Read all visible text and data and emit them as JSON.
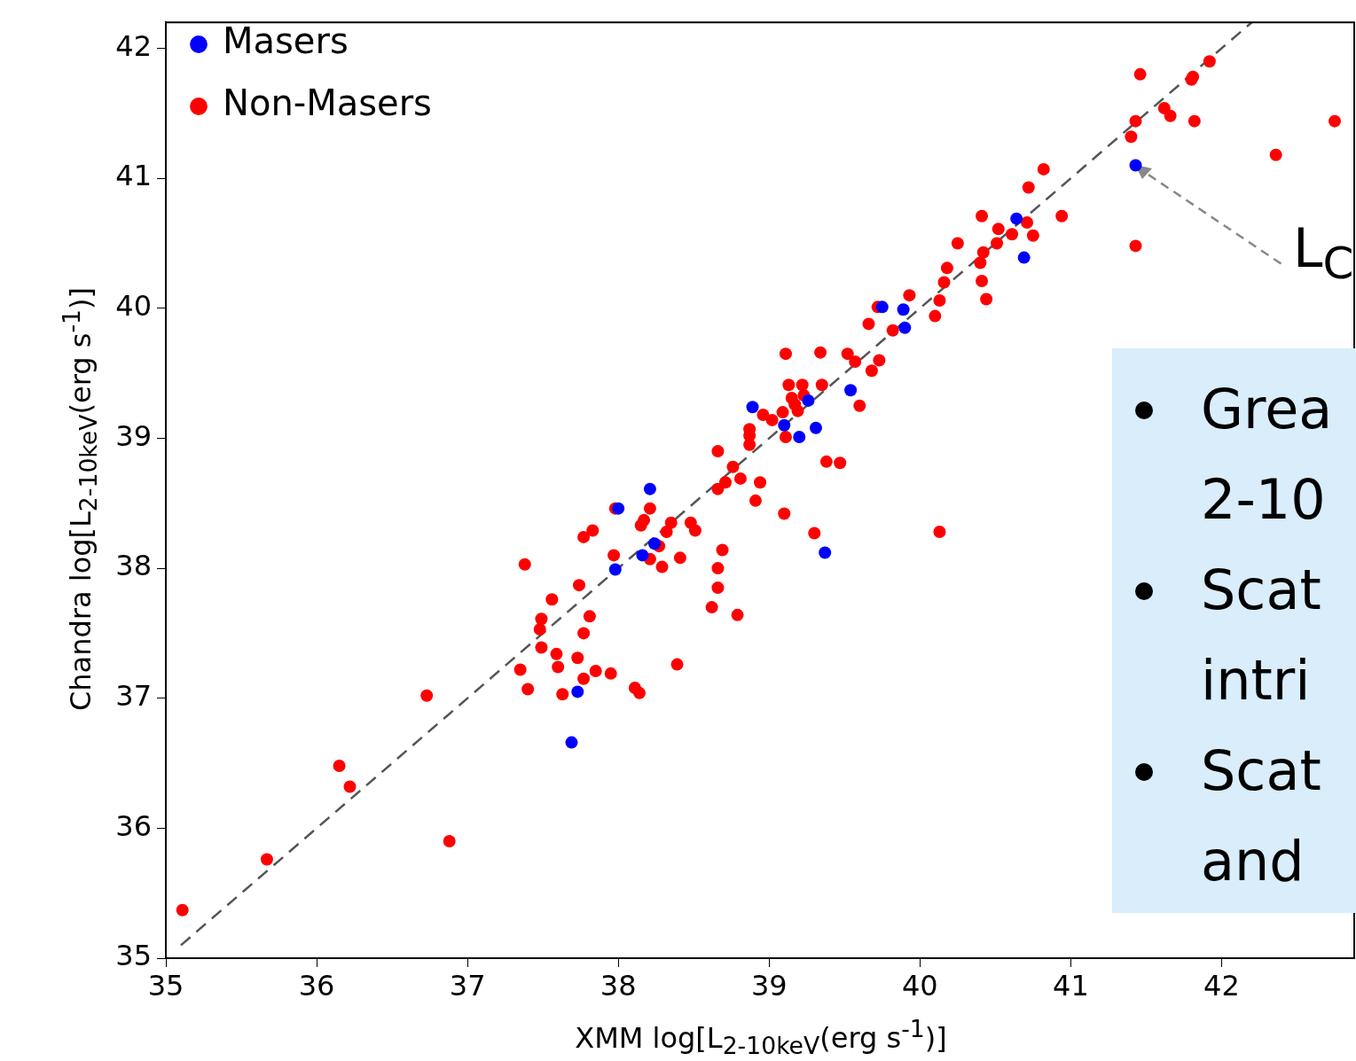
{
  "chart_data": {
    "type": "scatter",
    "xlabel": "XMM log[L$_{2-10keV}$(erg s$^{-1}$)]",
    "ylabel": "Chandra log[L$_{2-10keV}$(erg s$^{-1}$)]",
    "xlim": [
      35,
      42.85
    ],
    "xticks": [
      35,
      36,
      37,
      38,
      39,
      40,
      41,
      42
    ],
    "ylim": [
      35,
      42.2
    ],
    "yticks": [
      35,
      36,
      37,
      38,
      39,
      40,
      41,
      42
    ],
    "grid": false,
    "legend": "top left",
    "marker": "circle",
    "annotations": [
      {
        "text": "L$_{C}$",
        "x": 41.43,
        "y": 41.1
      },
      "Grea 2-10",
      "Scat intri",
      "Scat and"
    ],
    "series": [
      {
        "name": "Masers",
        "color": "#0000ff",
        "x": [
          38.0,
          37.98,
          38.21,
          38.16,
          38.24,
          37.73,
          37.69,
          38.89,
          39.1,
          39.2,
          39.26,
          39.31,
          39.37,
          39.54,
          39.75,
          39.89,
          39.9,
          40.64,
          40.69,
          41.43
        ],
        "values": [
          38.46,
          37.99,
          38.61,
          38.1,
          38.19,
          37.05,
          36.66,
          39.24,
          39.1,
          39.01,
          39.29,
          39.08,
          38.12,
          39.37,
          40.01,
          39.99,
          39.85,
          40.69,
          40.39,
          41.1
        ]
      },
      {
        "name": "Non-Masers",
        "color": "#ff0000",
        "x": [
          35.11,
          35.67,
          36.15,
          36.22,
          36.88,
          36.73,
          37.38,
          37.35,
          37.4,
          37.49,
          37.48,
          37.49,
          37.56,
          37.59,
          37.6,
          37.63,
          37.74,
          37.73,
          37.77,
          37.81,
          37.77,
          37.85,
          37.77,
          37.83,
          37.95,
          37.97,
          37.98,
          38.11,
          38.14,
          38.15,
          38.17,
          38.21,
          38.21,
          38.27,
          38.29,
          38.32,
          38.35,
          38.41,
          38.39,
          38.48,
          38.51,
          38.62,
          38.66,
          38.66,
          38.69,
          38.79,
          38.66,
          38.66,
          38.71,
          38.76,
          38.81,
          38.87,
          38.87,
          38.87,
          38.91,
          38.94,
          38.96,
          39.02,
          39.1,
          39.11,
          39.09,
          39.11,
          39.13,
          39.15,
          39.17,
          39.19,
          39.22,
          39.23,
          39.3,
          39.34,
          39.35,
          39.38,
          39.47,
          39.52,
          39.57,
          39.6,
          39.68,
          39.73,
          39.66,
          39.72,
          39.82,
          39.93,
          40.1,
          40.13,
          40.13,
          40.16,
          40.18,
          40.25,
          40.4,
          40.41,
          40.41,
          40.42,
          40.44,
          40.51,
          40.52,
          40.61,
          40.71,
          40.75,
          40.72,
          40.82,
          40.94,
          41.4,
          41.43,
          41.46,
          41.43,
          41.62,
          41.66,
          41.8,
          41.81,
          41.82,
          41.92,
          42.36,
          42.75
        ],
        "values": [
          35.37,
          35.76,
          36.48,
          36.32,
          35.9,
          37.02,
          38.03,
          37.22,
          37.07,
          37.61,
          37.53,
          37.39,
          37.76,
          37.34,
          37.24,
          37.03,
          37.87,
          37.31,
          37.5,
          37.63,
          37.15,
          37.21,
          38.24,
          38.29,
          37.19,
          38.1,
          38.46,
          37.08,
          37.04,
          38.33,
          38.37,
          38.46,
          38.07,
          38.17,
          38.01,
          38.28,
          38.35,
          38.08,
          37.26,
          38.35,
          38.29,
          37.7,
          37.85,
          38.0,
          38.14,
          37.64,
          38.9,
          38.61,
          38.66,
          38.78,
          38.69,
          39.07,
          39.02,
          38.95,
          38.52,
          38.66,
          39.18,
          39.14,
          38.42,
          39.65,
          39.2,
          39.01,
          39.41,
          39.31,
          39.26,
          39.21,
          39.41,
          39.33,
          38.27,
          39.66,
          39.41,
          38.82,
          38.81,
          39.65,
          39.59,
          39.25,
          39.52,
          39.6,
          39.88,
          40.01,
          39.83,
          40.1,
          39.94,
          38.28,
          40.06,
          40.2,
          40.31,
          40.5,
          40.35,
          40.21,
          40.71,
          40.43,
          40.07,
          40.5,
          40.61,
          40.57,
          40.66,
          40.56,
          40.93,
          41.07,
          40.71,
          41.32,
          41.44,
          41.8,
          40.48,
          41.54,
          41.48,
          41.76,
          41.78,
          41.44,
          41.9,
          41.18,
          41.44
        ]
      },
      {
        "type": "line",
        "color": "#555555",
        "line_style": "dashed",
        "marker": "none",
        "x": [
          35.1,
          42.2
        ],
        "values": [
          35.1,
          42.2
        ]
      }
    ]
  }
}
